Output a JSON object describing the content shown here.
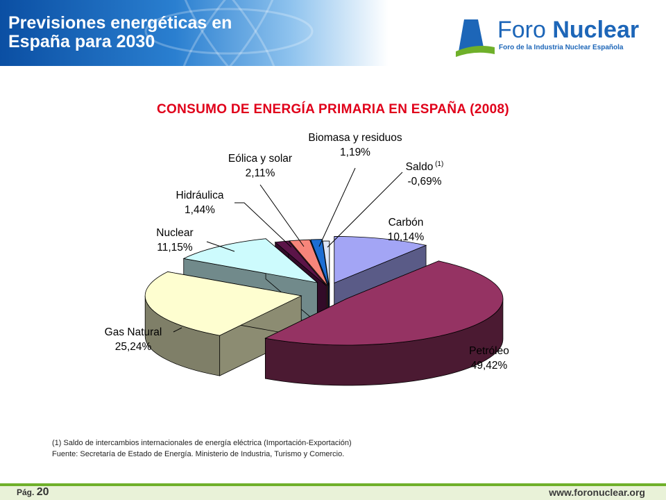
{
  "header": {
    "title_line1": "Previsiones energéticas en",
    "title_line2": "España para 2030",
    "logo_name_light": "Foro ",
    "logo_name_bold": "Nuclear",
    "logo_subtitle": "Foro de la Industria Nuclear Española"
  },
  "chart_data": {
    "type": "pie",
    "title": "CONSUMO DE ENERGÍA PRIMARIA EN ESPAÑA (2008)",
    "slices": [
      {
        "label": "Carbón",
        "value_label": "10,14%",
        "value": 10.14,
        "color": "#a3a5f5"
      },
      {
        "label": "Petróleo",
        "value_label": "49,42%",
        "value": 49.42,
        "color": "#953363"
      },
      {
        "label": "Gas Natural",
        "value_label": "25,24%",
        "value": 25.24,
        "color": "#fefed0"
      },
      {
        "label": "Nuclear",
        "value_label": "11,15%",
        "value": 11.15,
        "color": "#cdfbfd"
      },
      {
        "label": "Hidráulica",
        "value_label": "1,44%",
        "value": 1.44,
        "color": "#5b1448"
      },
      {
        "label": "Eólica y solar",
        "value_label": "2,11%",
        "value": 2.11,
        "color": "#f7857a"
      },
      {
        "label": "Biomasa y residuos",
        "value_label": "1,19%",
        "value": 1.19,
        "color": "#1d6ed3"
      },
      {
        "label": "Saldo",
        "label_note": "(1)",
        "value_label": "-0,69%",
        "value": -0.69,
        "color": "#dde6f7"
      }
    ]
  },
  "footnotes": {
    "note1": "(1) Saldo de intercambios internacionales de energía eléctrica (Importación-Exportación)",
    "source": "Fuente: Secretaría de Estado de Energía. Ministerio de Industria, Turismo y Comercio."
  },
  "footer": {
    "page_prefix": "Pág. ",
    "page_number": "20",
    "website": "www.foronuclear.org"
  },
  "colors": {
    "header_blue": "#0b4fa3",
    "title_red": "#e0001a",
    "footer_green": "#6fb02a",
    "logo_blue": "#1d66b8"
  }
}
